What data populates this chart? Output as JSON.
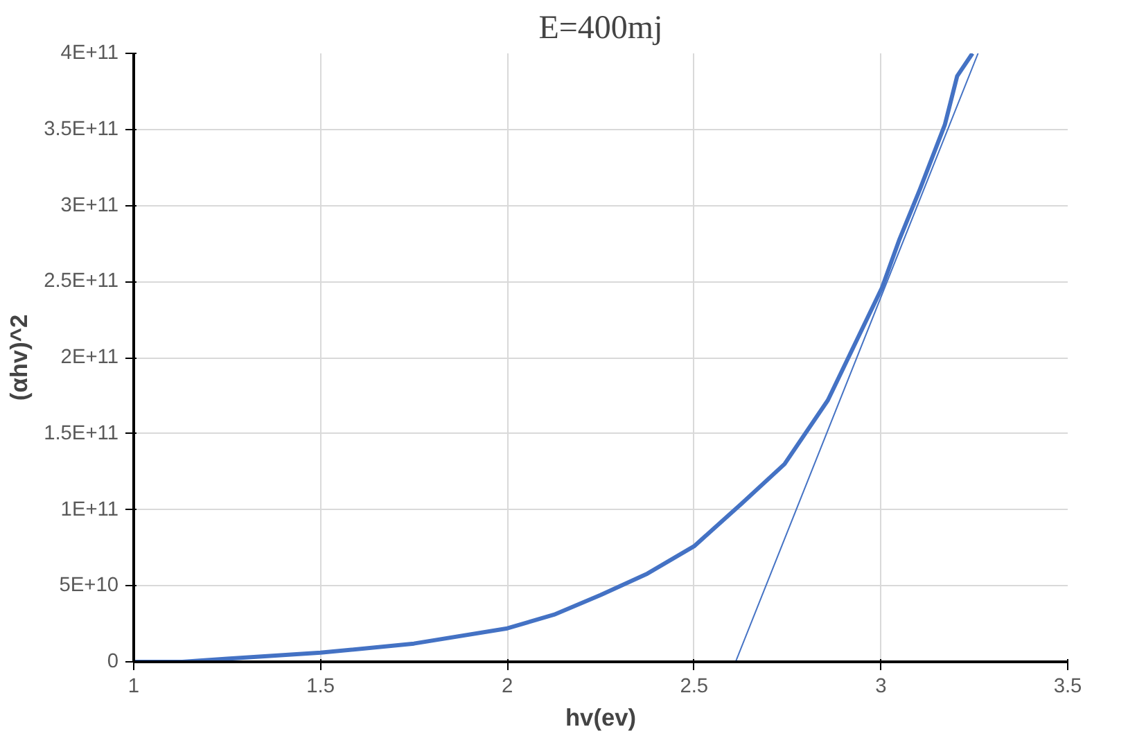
{
  "chart_data": {
    "type": "line",
    "title": "E=400mj",
    "xlabel": "hv(ev)",
    "ylabel": "(αhv)^2",
    "xlim": [
      1,
      3.5
    ],
    "xticks": [
      1,
      1.5,
      2,
      2.5,
      3,
      3.5
    ],
    "ylim": [
      0,
      400000000000
    ],
    "yticks": [
      {
        "value": 0,
        "label": "0"
      },
      {
        "value": 50000000000,
        "label": "5E+10"
      },
      {
        "value": 100000000000,
        "label": "1E+11"
      },
      {
        "value": 150000000000,
        "label": "1.5E+11"
      },
      {
        "value": 200000000000,
        "label": "2E+11"
      },
      {
        "value": 250000000000,
        "label": "2.5E+11"
      },
      {
        "value": 300000000000,
        "label": "3E+11"
      },
      {
        "value": 350000000000,
        "label": "3.5E+11"
      },
      {
        "value": 400000000000,
        "label": "4E+11"
      }
    ],
    "grid": true,
    "marker": "none",
    "line_style": "solid",
    "series": [
      {
        "color": "#4472c4",
        "x": [
          1,
          1.13,
          1.25,
          1.5,
          1.75,
          2,
          2.125,
          2.25,
          2.375,
          2.5,
          2.627,
          2.742,
          2.858,
          3.003,
          3.05,
          3.105,
          3.171,
          3.204,
          3.245
        ],
        "values": [
          0,
          0,
          2000000000,
          6000000000,
          12000000000,
          22000000000,
          31000000000,
          44000000000,
          58000000000,
          76000000000,
          104000000000,
          130000000000,
          172000000000,
          246000000000,
          278000000000,
          311000000000,
          353000000000,
          385000000000,
          400000000000
        ]
      },
      {
        "type": "line",
        "color": "#4472c4",
        "x": [
          2.611,
          3.26
        ],
        "values": [
          0,
          400000000000
        ]
      }
    ]
  }
}
